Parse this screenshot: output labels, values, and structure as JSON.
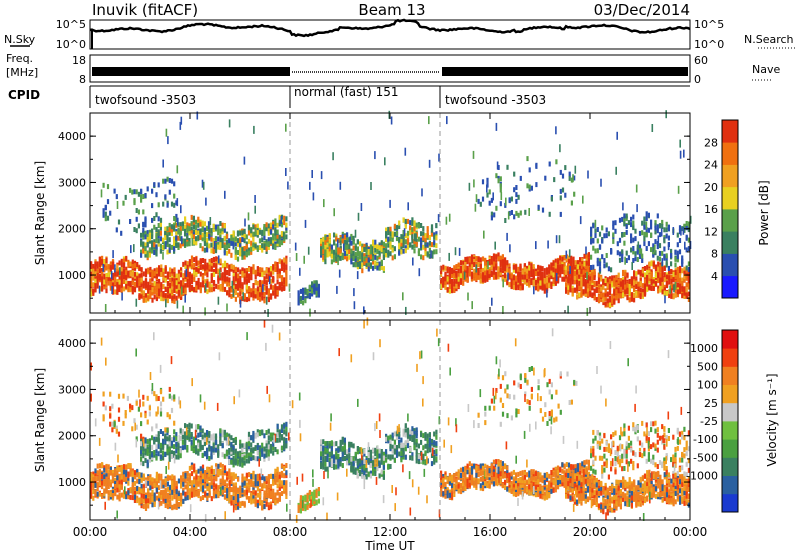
{
  "header": {
    "title": "Inuvik (fitACF)",
    "beam": "Beam 13",
    "date": "03/Dec/2014"
  },
  "top_panels": {
    "nsky_label": "N.Sky",
    "nsearch_label": "N.Search",
    "nsky_ticks": [
      "10^5",
      "10^0"
    ],
    "nsearch_ticks": [
      "10^5",
      "10^0"
    ],
    "freq_label_line1": "Freq.",
    "freq_label_line2": "[MHz]",
    "freq_ticks": [
      "18",
      "8"
    ],
    "nave_label": "Nave",
    "nave_ticks": [
      "60",
      "0"
    ],
    "cpid_label": "CPID",
    "cpid_segments": [
      {
        "label": "twofsound -3503",
        "start": 0,
        "end": 8
      },
      {
        "label": "normal (fast) 151",
        "start": 8,
        "end": 14
      },
      {
        "label": "twofsound -3503",
        "start": 14,
        "end": 24
      }
    ]
  },
  "chart_data": [
    {
      "type": "heatmap",
      "title": "",
      "xlabel": "Time UT",
      "ylabel": "Slant Range [km]",
      "x_range": [
        0,
        24
      ],
      "y_range": [
        180,
        4500
      ],
      "x_ticks": [
        "00:00",
        "04:00",
        "08:00",
        "12:00",
        "16:00",
        "20:00",
        "00:00"
      ],
      "y_ticks": [
        1000,
        2000,
        3000,
        4000
      ],
      "colorbar_label": "Power [dB]",
      "colorbar_ticks": [
        4,
        8,
        12,
        16,
        20,
        24,
        28
      ],
      "colorbar_colors": [
        "#1a1aff",
        "#2a4fb0",
        "#3a8060",
        "#5aa04a",
        "#e8d020",
        "#f0a020",
        "#f07010",
        "#e03010"
      ],
      "mode_boundaries": [
        8,
        14
      ]
    },
    {
      "type": "heatmap",
      "title": "",
      "xlabel": "Time UT",
      "ylabel": "Slant Range [km]",
      "x_range": [
        0,
        24
      ],
      "y_range": [
        180,
        4500
      ],
      "x_ticks": [
        "00:00",
        "04:00",
        "08:00",
        "12:00",
        "16:00",
        "20:00",
        "00:00"
      ],
      "y_ticks": [
        1000,
        2000,
        3000,
        4000
      ],
      "colorbar_label": "Velocity [m s⁻¹]",
      "colorbar_ticks": [
        "1000",
        "500",
        "100",
        "25",
        "-25",
        "-100",
        "-500",
        "-1000"
      ],
      "colorbar_colors": [
        "#1a3ad0",
        "#2a60a0",
        "#3a8060",
        "#4aa040",
        "#70c040",
        "#c8c8c8",
        "#f0a020",
        "#f08020",
        "#f04010",
        "#e01010"
      ],
      "mode_boundaries": [
        8,
        14
      ]
    }
  ]
}
